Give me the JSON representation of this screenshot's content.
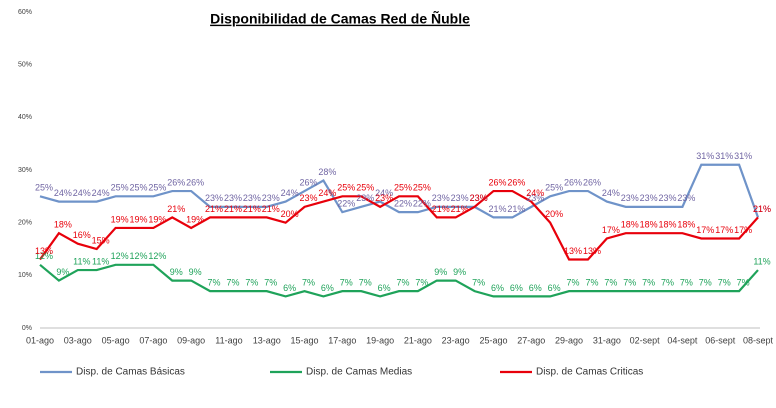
{
  "chart_data": {
    "type": "line",
    "title": "Disponibilidad de Camas Red de Ñuble",
    "categories": [
      "01-ago",
      null,
      "03-ago",
      null,
      "05-ago",
      null,
      "07-ago",
      null,
      "09-ago",
      null,
      "11-ago",
      null,
      "13-ago",
      null,
      "15-ago",
      null,
      "17-ago",
      null,
      "19-ago",
      null,
      "21-ago",
      null,
      "23-ago",
      null,
      "25-ago",
      null,
      "27-ago",
      null,
      "29-ago",
      null,
      "31-ago",
      null,
      "02-sept",
      null,
      "04-sept",
      null,
      "06-sept",
      null,
      "08-sept"
    ],
    "ylim": [
      0,
      60
    ],
    "yticks": [
      {
        "value": 0,
        "label": "0%"
      },
      {
        "value": 10,
        "label": "10%"
      },
      {
        "value": 20,
        "label": "20%"
      },
      {
        "value": 30,
        "label": "30%"
      },
      {
        "value": 40,
        "label": "40%"
      },
      {
        "value": 50,
        "label": "50%"
      },
      {
        "value": 60,
        "label": "60%"
      }
    ],
    "grid": false,
    "series": [
      {
        "name": "Disp. de Camas Básicas",
        "color": "#6f93c9",
        "label_color": "#7065a3",
        "values": [
          25,
          24,
          24,
          24,
          25,
          25,
          25,
          26,
          26,
          23,
          23,
          23,
          23,
          24,
          26,
          28,
          22,
          23,
          24,
          22,
          22,
          23,
          23,
          23,
          21,
          21,
          23,
          25,
          26,
          26,
          24,
          23,
          23,
          23,
          23,
          31,
          31,
          31,
          21
        ],
        "value_labels": [
          "25%",
          "24%",
          "24%",
          "24%",
          "25%",
          "25%",
          "25%",
          "26%",
          "26%",
          "23%",
          "23%",
          "23%",
          "23%",
          "24%",
          "26%",
          "28%",
          "22%",
          "23%",
          "24%",
          "22%",
          "22%",
          "23%",
          "23%",
          "23%",
          "21%",
          "21%",
          "23%",
          "25%",
          "26%",
          "26%",
          "24%",
          "23%",
          "23%",
          "23%",
          "23%",
          "31%",
          "31%",
          "31%",
          "21%"
        ]
      },
      {
        "name": "Disp. de Camas Medias",
        "color": "#1fa35a",
        "label_color": "#1fa35a",
        "values": [
          12,
          9,
          11,
          11,
          12,
          12,
          12,
          9,
          9,
          7,
          7,
          7,
          7,
          6,
          7,
          6,
          7,
          7,
          6,
          7,
          7,
          9,
          9,
          7,
          6,
          6,
          6,
          6,
          7,
          7,
          7,
          7,
          7,
          7,
          7,
          7,
          7,
          7,
          11
        ],
        "value_labels": [
          "12%",
          "9%",
          "11%",
          "11%",
          "12%",
          "12%",
          "12%",
          "9%",
          "9%",
          "7%",
          "7%",
          "7%",
          "7%",
          "6%",
          "7%",
          "6%",
          "7%",
          "7%",
          "6%",
          "7%",
          "7%",
          "9%",
          "9%",
          "7%",
          "6%",
          "6%",
          "6%",
          "6%",
          "7%",
          "7%",
          "7%",
          "7%",
          "7%",
          "7%",
          "7%",
          "7%",
          "7%",
          "7%",
          "11%"
        ]
      },
      {
        "name": "Disp. de Camas Criticas",
        "color": "#e8000b",
        "label_color": "#e8000b",
        "values": [
          13,
          18,
          16,
          15,
          19,
          19,
          19,
          21,
          19,
          21,
          21,
          21,
          21,
          20,
          23,
          24,
          25,
          25,
          23,
          25,
          25,
          21,
          21,
          23,
          26,
          26,
          24,
          20,
          13,
          13,
          17,
          18,
          18,
          18,
          18,
          17,
          17,
          17,
          21
        ],
        "value_labels": [
          "13%",
          "18%",
          "16%",
          "15%",
          "19%",
          "19%",
          "19%",
          "21%",
          "19%",
          "21%",
          "21%",
          "21%",
          "21%",
          "20%",
          "23%",
          "24%",
          "25%",
          "25%",
          "23%",
          "25%",
          "25%",
          "21%",
          "21%",
          "23%",
          "26%",
          "26%",
          "24%",
          "20%",
          "13%",
          "13%",
          "17%",
          "18%",
          "18%",
          "18%",
          "18%",
          "17%",
          "17%",
          "17%",
          "21%"
        ]
      }
    ]
  }
}
